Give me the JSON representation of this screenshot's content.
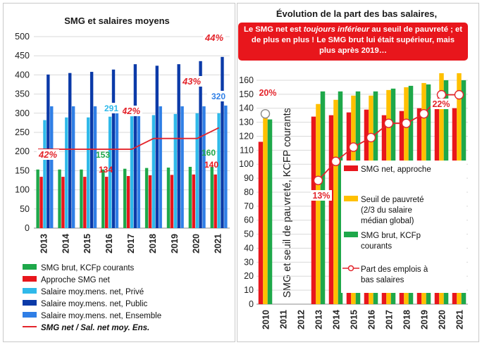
{
  "colors": {
    "smg_brut": "#1ea84a",
    "smg_net": "#e8161c",
    "prive": "#2fb9ea",
    "public": "#0b3aa8",
    "ensemble": "#2f7fe6",
    "ratio_line": "#e3242b",
    "seuil": "#ffc000",
    "callout": "#e8161c"
  },
  "chart_data": [
    {
      "type": "bar",
      "title": "SMG et salaires moyens",
      "ylim": [
        0,
        500
      ],
      "yticks": [
        "0",
        "50",
        "100",
        "150",
        "200",
        "250",
        "300",
        "350",
        "400",
        "450",
        "500"
      ],
      "categories": [
        "2013",
        "2014",
        "2015",
        "2016",
        "2017",
        "2018",
        "2019",
        "2020",
        "2021"
      ],
      "series": [
        {
          "name": "SMG brut, KCFp courants",
          "values": [
            153,
            153,
            153,
            153,
            155,
            157,
            158,
            160,
            160
          ]
        },
        {
          "name": "Approche SMG net",
          "values": [
            134,
            134,
            134,
            134,
            136,
            138,
            139,
            140,
            140
          ]
        },
        {
          "name": "Salaire moy.mens. net, Privé",
          "values": [
            282,
            289,
            289,
            291,
            292,
            295,
            298,
            300,
            300
          ]
        },
        {
          "name": "Salaire moy.mens. net, Public",
          "values": [
            401,
            405,
            408,
            414,
            428,
            424,
            428,
            436,
            447
          ]
        },
        {
          "name": "Salaire moy.mens. net, Ensemble",
          "values": [
            318,
            318,
            318,
            320,
            318,
            318,
            318,
            318,
            320
          ]
        },
        {
          "name": "SMG net / Sal. net moy. Ens.",
          "type": "line",
          "axis": "secondary",
          "unit": "%",
          "values": [
            42,
            42,
            42,
            42,
            42,
            43,
            43,
            43,
            44
          ]
        }
      ],
      "data_labels": [
        {
          "text": "42%",
          "series": "SMG net / Sal. net moy. Ens.",
          "category": "2013"
        },
        {
          "text": "42%",
          "series": "SMG net / Sal. net moy. Ens.",
          "category": "2017"
        },
        {
          "text": "43%",
          "series": "SMG net / Sal. net moy. Ens.",
          "category": "2020"
        },
        {
          "text": "44%",
          "series": "SMG net / Sal. net moy. Ens.",
          "category": "2021"
        },
        {
          "text": "291",
          "series": "Salaire moy.mens. net, Privé",
          "category": "2016"
        },
        {
          "text": "153",
          "series": "SMG brut, KCFp courants",
          "category": "2016"
        },
        {
          "text": "134",
          "series": "Approche SMG net",
          "category": "2016"
        },
        {
          "text": "160",
          "series": "SMG brut, KCFp courants",
          "category": "2021"
        },
        {
          "text": "140",
          "series": "Approche SMG net",
          "category": "2021"
        },
        {
          "text": "320",
          "series": "Salaire moy.mens. net, Ensemble",
          "category": "2021"
        }
      ],
      "legend": [
        "SMG brut, KCFp courants",
        "Approche SMG net",
        "Salaire moy.mens. net, Privé",
        "Salaire moy.mens. net, Public",
        "Salaire moy.mens. net, Ensemble",
        "SMG net / Sal. net moy. Ens."
      ],
      "legend_position": "bottom",
      "grid": true
    },
    {
      "type": "bar",
      "title": "Évolution de la part des bas  salaires,",
      "ylabel": "SMG et seuil de pauvreté, KCFP courants",
      "ylim": [
        0,
        165
      ],
      "yticks": [
        "0",
        "10",
        "20",
        "30",
        "40",
        "50",
        "60",
        "70",
        "80",
        "90",
        "100",
        "110",
        "120",
        "130",
        "140",
        "150",
        "160"
      ],
      "categories": [
        "2010",
        "2011",
        "2012",
        "2013",
        "2014",
        "2015",
        "2016",
        "2017",
        "2018",
        "2019",
        "2020",
        "2021"
      ],
      "series": [
        {
          "name": "SMG net, approche",
          "values": [
            116,
            null,
            null,
            134,
            135,
            137,
            139,
            135,
            138,
            140,
            142,
            140
          ]
        },
        {
          "name": "Seuil de pauvreté (2/3 du salaire médian global)",
          "values": [
            133,
            null,
            null,
            143,
            146,
            149,
            149,
            153,
            155,
            158,
            165,
            165
          ]
        },
        {
          "name": "SMG brut, KCFp courants",
          "values": [
            132,
            null,
            null,
            152,
            152,
            152,
            152,
            154,
            156,
            157,
            160,
            160
          ]
        },
        {
          "name": "Part des emplois à bas salaires",
          "type": "line",
          "axis": "secondary",
          "unit": "%",
          "values": [
            20,
            null,
            null,
            13,
            15,
            16.5,
            17.5,
            19,
            19,
            20,
            22,
            22
          ]
        }
      ],
      "data_labels": [
        {
          "text": "20%",
          "category": "2010"
        },
        {
          "text": "13%",
          "category": "2013"
        },
        {
          "text": "22%",
          "category": "2020"
        }
      ],
      "legend": [
        "SMG net, approche",
        "Seuil de pauvreté (2/3 du salaire médian global)",
        "SMG brut, KCFp courants",
        "Part des emplois à bas salaires"
      ],
      "legend_position": "right-inside",
      "grid": true
    }
  ],
  "callout": {
    "part1": "Le SMG net est ",
    "part2": "toujours inférieur",
    "part3": "  au seuil de pauvreté ; et de plus en plus !  Le SMG brut lui était supérieur, mais plus après  2019…"
  }
}
